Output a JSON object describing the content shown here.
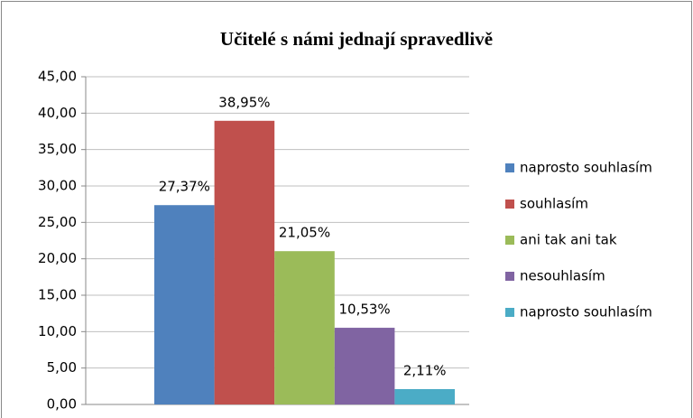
{
  "chart_data": {
    "type": "bar",
    "title": "Učitelé s námi jednají spravedlivě",
    "categories": [
      null
    ],
    "series": [
      {
        "name": "naprosto souhlasím",
        "color": "#4f81bd",
        "values": [
          27.37
        ],
        "value_labels": [
          "27,37%"
        ]
      },
      {
        "name": "souhlasím",
        "color": "#c0504d",
        "values": [
          38.95
        ],
        "value_labels": [
          "38,95%"
        ]
      },
      {
        "name": "ani tak ani tak",
        "color": "#9bbb59",
        "values": [
          21.05
        ],
        "value_labels": [
          "21,05%"
        ]
      },
      {
        "name": "nesouhlasím",
        "color": "#8064a2",
        "values": [
          10.53
        ],
        "value_labels": [
          "10,53%"
        ]
      },
      {
        "name": "naprosto souhlasím",
        "color": "#4bacc6",
        "values": [
          2.11
        ],
        "value_labels": [
          "2,11%"
        ]
      }
    ],
    "ylim": [
      0,
      45
    ],
    "yticks": [
      {
        "value": 0,
        "label": "0,00"
      },
      {
        "value": 5,
        "label": "5,00"
      },
      {
        "value": 10,
        "label": "10,00"
      },
      {
        "value": 15,
        "label": "15,00"
      },
      {
        "value": 20,
        "label": "20,00"
      },
      {
        "value": 25,
        "label": "25,00"
      },
      {
        "value": 30,
        "label": "30,00"
      },
      {
        "value": 35,
        "label": "35,00"
      },
      {
        "value": 40,
        "label": "40,00"
      },
      {
        "value": 45,
        "label": "45,00"
      }
    ],
    "grid": true,
    "legend": "right"
  }
}
